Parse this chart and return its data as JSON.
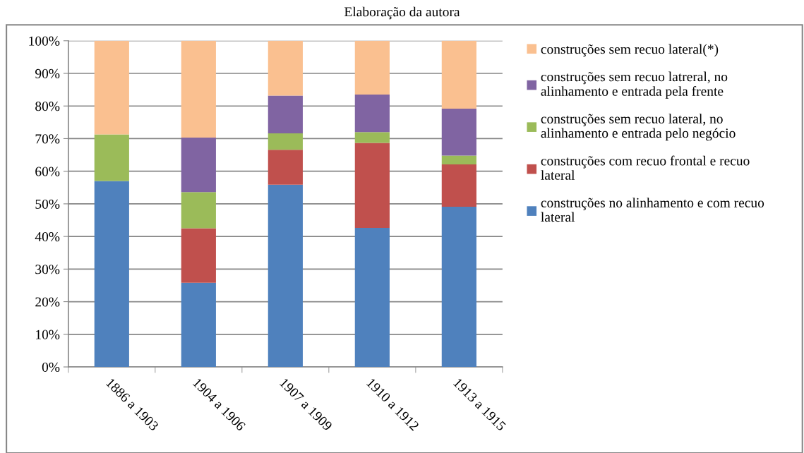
{
  "chart_data": {
    "type": "bar",
    "stacked": true,
    "categories": [
      "1886 a 1903",
      "1904 a 1906",
      "1907 a 1909",
      "1910 a 1912",
      "1913 a 1915"
    ],
    "series": [
      {
        "name": "construções no alinhamento e com recuo lateral",
        "color": "#4f81bd",
        "values": [
          57.0,
          25.8,
          55.9,
          42.6,
          49.1
        ]
      },
      {
        "name": "construções com recuo frontal e recuo lateral",
        "color": "#c0504d",
        "values": [
          0,
          16.7,
          10.7,
          26.1,
          13.0
        ]
      },
      {
        "name": "construções sem recuo lateral, no alinhamento e entrada pelo negócio",
        "color": "#9bbb59",
        "values": [
          14.3,
          11.1,
          5.0,
          3.3,
          2.7
        ]
      },
      {
        "name": "construções sem recuo latreral, no alinhamento e entrada pela frente",
        "color": "#8064a2",
        "values": [
          0,
          16.7,
          11.6,
          11.5,
          14.4
        ]
      },
      {
        "name": "construções sem recuo lateral(*)",
        "color": "#fac090",
        "values": [
          28.7,
          29.7,
          16.8,
          16.5,
          20.8
        ]
      }
    ],
    "ylim": [
      0,
      100
    ],
    "yticks": [
      {
        "value": 0,
        "label": "0%"
      },
      {
        "value": 10,
        "label": "10%"
      },
      {
        "value": 20,
        "label": "20%"
      },
      {
        "value": 30,
        "label": "30%"
      },
      {
        "value": 40,
        "label": "40%"
      },
      {
        "value": 50,
        "label": "50%"
      },
      {
        "value": 60,
        "label": "60%"
      },
      {
        "value": 70,
        "label": "70%"
      },
      {
        "value": 80,
        "label": "80%"
      },
      {
        "value": 90,
        "label": "90%"
      },
      {
        "value": 100,
        "label": "100%"
      }
    ],
    "grid": "y",
    "legend": "right",
    "annotations": [
      "Elaboração da autora"
    ]
  }
}
